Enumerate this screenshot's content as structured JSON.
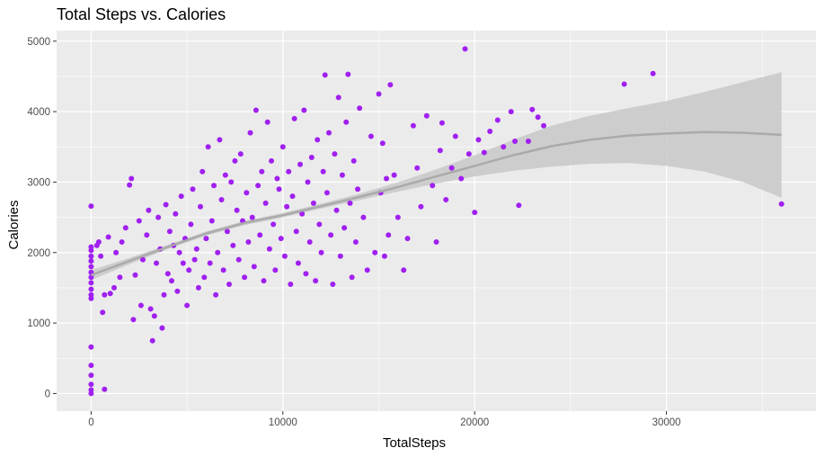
{
  "chart_data": {
    "type": "scatter",
    "title": "Total Steps vs. Calories",
    "xlabel": "TotalSteps",
    "ylabel": "Calories",
    "xlim": [
      -1800,
      37800
    ],
    "ylim": [
      -250,
      5150
    ],
    "x_ticks": [
      0,
      10000,
      20000,
      30000
    ],
    "x_tick_labels": [
      "0",
      "10000",
      "20000",
      "30000"
    ],
    "y_ticks": [
      0,
      1000,
      2000,
      3000,
      4000,
      5000
    ],
    "y_tick_labels": [
      "0",
      "1000",
      "2000",
      "3000",
      "4000",
      "5000"
    ],
    "x_minor_ticks": [
      5000,
      15000,
      25000,
      35000
    ],
    "y_minor_ticks": [
      500,
      1500,
      2500,
      3500,
      4500
    ],
    "grid": true,
    "legend": "none",
    "colors": {
      "points": "#a020f0",
      "smooth_line": "#aaaaaa",
      "ribbon": "#c8c8c8",
      "panel": "#ebebeb",
      "grid": "#ffffff"
    },
    "smooth": {
      "x": [
        0,
        2000,
        4000,
        6000,
        8000,
        10000,
        12000,
        14000,
        16000,
        18000,
        20000,
        22000,
        24000,
        26000,
        28000,
        30000,
        32000,
        34000,
        36000
      ],
      "y": [
        1680,
        1880,
        2080,
        2270,
        2420,
        2530,
        2660,
        2790,
        2930,
        3080,
        3230,
        3380,
        3510,
        3600,
        3660,
        3690,
        3710,
        3700,
        3670
      ],
      "lower": [
        1610,
        1835,
        2050,
        2240,
        2390,
        2500,
        2625,
        2745,
        2865,
        2980,
        3080,
        3160,
        3220,
        3260,
        3270,
        3230,
        3150,
        3000,
        2780
      ],
      "upper": [
        1750,
        1925,
        2110,
        2300,
        2450,
        2560,
        2695,
        2835,
        2995,
        3180,
        3380,
        3600,
        3800,
        3940,
        4050,
        4150,
        4280,
        4420,
        4560
      ]
    },
    "points": [
      [
        0,
        0
      ],
      [
        0,
        50
      ],
      [
        0,
        130
      ],
      [
        0,
        260
      ],
      [
        0,
        400
      ],
      [
        0,
        660
      ],
      [
        0,
        1350
      ],
      [
        0,
        1400
      ],
      [
        0,
        1480
      ],
      [
        0,
        1570
      ],
      [
        0,
        1650
      ],
      [
        0,
        1720
      ],
      [
        0,
        1800
      ],
      [
        0,
        1880
      ],
      [
        0,
        1950
      ],
      [
        0,
        2030
      ],
      [
        0,
        2080
      ],
      [
        0,
        2660
      ],
      [
        700,
        60
      ],
      [
        300,
        2100
      ],
      [
        400,
        2150
      ],
      [
        500,
        1950
      ],
      [
        600,
        1150
      ],
      [
        700,
        1400
      ],
      [
        900,
        2220
      ],
      [
        1000,
        1420
      ],
      [
        1200,
        1500
      ],
      [
        1300,
        2000
      ],
      [
        1500,
        1650
      ],
      [
        1600,
        2150
      ],
      [
        1800,
        2350
      ],
      [
        2000,
        2960
      ],
      [
        2100,
        3050
      ],
      [
        2200,
        1050
      ],
      [
        2300,
        1680
      ],
      [
        2500,
        2450
      ],
      [
        2600,
        1250
      ],
      [
        2700,
        1900
      ],
      [
        2900,
        2250
      ],
      [
        3000,
        2600
      ],
      [
        3100,
        1200
      ],
      [
        3200,
        750
      ],
      [
        3300,
        1100
      ],
      [
        3400,
        1850
      ],
      [
        3500,
        2500
      ],
      [
        3600,
        2050
      ],
      [
        3700,
        930
      ],
      [
        3800,
        1400
      ],
      [
        3900,
        2680
      ],
      [
        4000,
        1700
      ],
      [
        4100,
        2300
      ],
      [
        4200,
        1600
      ],
      [
        4300,
        2100
      ],
      [
        4400,
        2550
      ],
      [
        4500,
        1450
      ],
      [
        4600,
        2000
      ],
      [
        4700,
        2800
      ],
      [
        4800,
        1850
      ],
      [
        4900,
        2200
      ],
      [
        5000,
        1250
      ],
      [
        5100,
        1750
      ],
      [
        5200,
        2400
      ],
      [
        5300,
        2900
      ],
      [
        5400,
        1900
      ],
      [
        5500,
        2050
      ],
      [
        5600,
        1500
      ],
      [
        5700,
        2650
      ],
      [
        5800,
        3150
      ],
      [
        5900,
        1650
      ],
      [
        6000,
        2200
      ],
      [
        6100,
        3500
      ],
      [
        6200,
        1850
      ],
      [
        6300,
        2450
      ],
      [
        6400,
        2950
      ],
      [
        6500,
        1400
      ],
      [
        6600,
        2000
      ],
      [
        6700,
        3600
      ],
      [
        6800,
        2750
      ],
      [
        6900,
        1750
      ],
      [
        7000,
        3100
      ],
      [
        7100,
        2300
      ],
      [
        7200,
        1550
      ],
      [
        7300,
        3000
      ],
      [
        7400,
        2100
      ],
      [
        7500,
        3300
      ],
      [
        7600,
        2600
      ],
      [
        7700,
        1900
      ],
      [
        7800,
        3400
      ],
      [
        7900,
        2450
      ],
      [
        8000,
        1650
      ],
      [
        8100,
        2850
      ],
      [
        8200,
        2150
      ],
      [
        8300,
        3700
      ],
      [
        8400,
        2500
      ],
      [
        8500,
        1800
      ],
      [
        8600,
        4020
      ],
      [
        8700,
        2950
      ],
      [
        8800,
        2250
      ],
      [
        8900,
        3150
      ],
      [
        9000,
        1600
      ],
      [
        9100,
        2700
      ],
      [
        9200,
        3850
      ],
      [
        9300,
        2050
      ],
      [
        9400,
        3300
      ],
      [
        9500,
        2400
      ],
      [
        9600,
        1750
      ],
      [
        9700,
        3050
      ],
      [
        9800,
        2900
      ],
      [
        9900,
        2200
      ],
      [
        10000,
        3500
      ],
      [
        10100,
        1950
      ],
      [
        10200,
        2650
      ],
      [
        10300,
        3150
      ],
      [
        10400,
        1550
      ],
      [
        10500,
        2800
      ],
      [
        10600,
        3900
      ],
      [
        10700,
        2300
      ],
      [
        10800,
        1850
      ],
      [
        10900,
        3250
      ],
      [
        11000,
        2550
      ],
      [
        11100,
        4020
      ],
      [
        11200,
        1700
      ],
      [
        11300,
        3000
      ],
      [
        11400,
        2150
      ],
      [
        11500,
        3350
      ],
      [
        11600,
        2700
      ],
      [
        11700,
        1600
      ],
      [
        11800,
        3600
      ],
      [
        11900,
        2400
      ],
      [
        12000,
        2000
      ],
      [
        12100,
        3150
      ],
      [
        12200,
        4520
      ],
      [
        12300,
        2850
      ],
      [
        12400,
        3700
      ],
      [
        12500,
        2250
      ],
      [
        12600,
        1550
      ],
      [
        12700,
        3400
      ],
      [
        12800,
        2600
      ],
      [
        12900,
        4200
      ],
      [
        13000,
        1950
      ],
      [
        13100,
        3100
      ],
      [
        13200,
        2350
      ],
      [
        13300,
        3850
      ],
      [
        13400,
        4530
      ],
      [
        13500,
        2700
      ],
      [
        13600,
        1650
      ],
      [
        13700,
        3300
      ],
      [
        13800,
        2150
      ],
      [
        13900,
        2900
      ],
      [
        14000,
        4050
      ],
      [
        14200,
        2500
      ],
      [
        14400,
        1750
      ],
      [
        14600,
        3650
      ],
      [
        14800,
        2000
      ],
      [
        15000,
        4250
      ],
      [
        15100,
        2850
      ],
      [
        15200,
        3550
      ],
      [
        15300,
        1950
      ],
      [
        15400,
        3050
      ],
      [
        15500,
        2250
      ],
      [
        15600,
        4380
      ],
      [
        15800,
        3100
      ],
      [
        16000,
        2500
      ],
      [
        16300,
        1750
      ],
      [
        16500,
        2200
      ],
      [
        16800,
        3800
      ],
      [
        17000,
        3200
      ],
      [
        17200,
        2650
      ],
      [
        17500,
        3940
      ],
      [
        17800,
        2950
      ],
      [
        18000,
        2150
      ],
      [
        18200,
        3450
      ],
      [
        18300,
        3840
      ],
      [
        18500,
        2750
      ],
      [
        18800,
        3200
      ],
      [
        19000,
        3650
      ],
      [
        19300,
        3050
      ],
      [
        19500,
        4890
      ],
      [
        19700,
        3400
      ],
      [
        20000,
        2570
      ],
      [
        20200,
        3600
      ],
      [
        20500,
        3420
      ],
      [
        20800,
        3720
      ],
      [
        21200,
        3880
      ],
      [
        21500,
        3500
      ],
      [
        21900,
        4000
      ],
      [
        22100,
        3580
      ],
      [
        22300,
        2670
      ],
      [
        22800,
        3580
      ],
      [
        23000,
        4030
      ],
      [
        23300,
        3920
      ],
      [
        23600,
        3800
      ],
      [
        27800,
        4390
      ],
      [
        29300,
        4540
      ],
      [
        36000,
        2690
      ]
    ]
  }
}
